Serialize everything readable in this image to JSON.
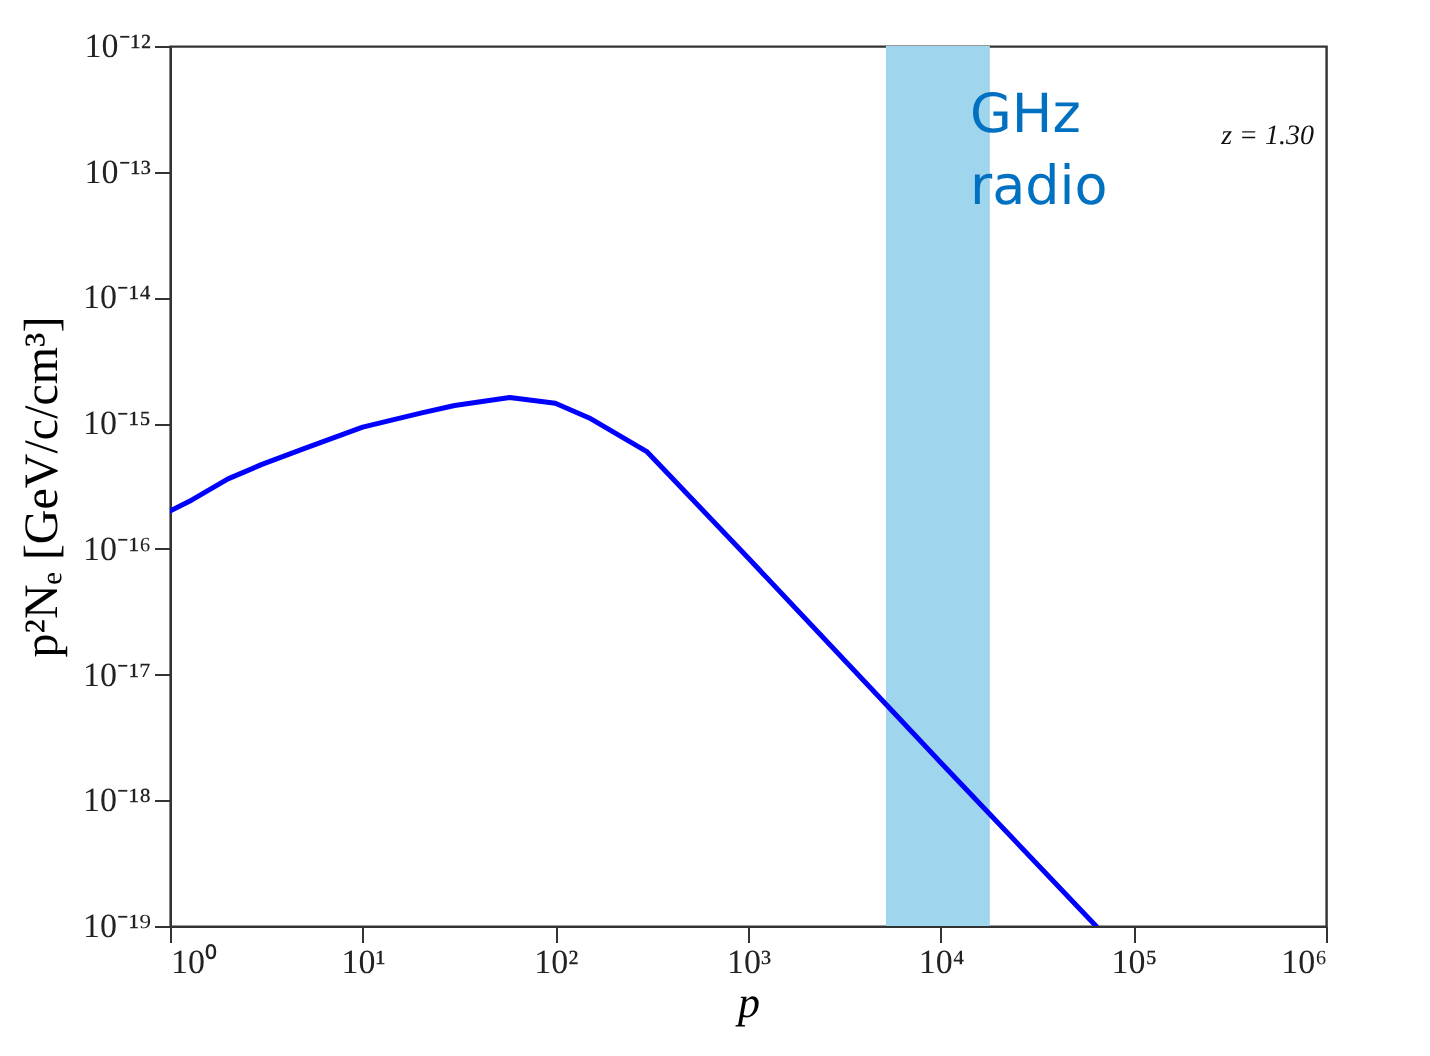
{
  "chart_data": {
    "type": "line",
    "xlabel": "p",
    "ylabel": "p²Nₑ [GeV/c/cm³]",
    "log": "xy",
    "line_style": "solid",
    "xlim": [
      1,
      1000000
    ],
    "ylim": [
      1e-19,
      1e-12
    ],
    "xticks": [
      {
        "value": 1,
        "label": "10⁰"
      },
      {
        "value": 10,
        "label": "10¹"
      },
      {
        "value": 100,
        "label": "10²"
      },
      {
        "value": 1000,
        "label": "10³"
      },
      {
        "value": 10000,
        "label": "10⁴"
      },
      {
        "value": 100000,
        "label": "10⁵"
      },
      {
        "value": 1000000,
        "label": "10⁶"
      }
    ],
    "yticks": [
      {
        "value": 1e-19,
        "label": "10⁻¹⁹"
      },
      {
        "value": 1e-18,
        "label": "10⁻¹⁸"
      },
      {
        "value": 1e-17,
        "label": "10⁻¹⁷"
      },
      {
        "value": 1e-16,
        "label": "10⁻¹⁶"
      },
      {
        "value": 1e-15,
        "label": "10⁻¹⁵"
      },
      {
        "value": 1e-14,
        "label": "10⁻¹⁴"
      },
      {
        "value": 1e-13,
        "label": "10⁻¹³"
      },
      {
        "value": 1e-12,
        "label": "10⁻¹²"
      }
    ],
    "series": [
      {
        "color": "#0000ff",
        "x": [
          1,
          1.3,
          2,
          3,
          5,
          10,
          20,
          30,
          58,
          100,
          150,
          300,
          1000,
          5200,
          10000,
          64000
        ],
        "values": [
          2e-16,
          2.45e-16,
          3.6e-16,
          4.7e-16,
          6.3e-16,
          9.3e-16,
          1.2e-15,
          1.38e-15,
          1.6e-15,
          1.44e-15,
          1.1e-15,
          5.9e-16,
          8.5e-17,
          5.8e-18,
          2e-18,
          1e-19
        ]
      }
    ],
    "bands": [
      {
        "axis": "x",
        "from": 5200,
        "to": 18000,
        "label": "GHz radio",
        "color": "#a0d5ee"
      }
    ],
    "annotations": [
      "z = 1.30"
    ]
  }
}
